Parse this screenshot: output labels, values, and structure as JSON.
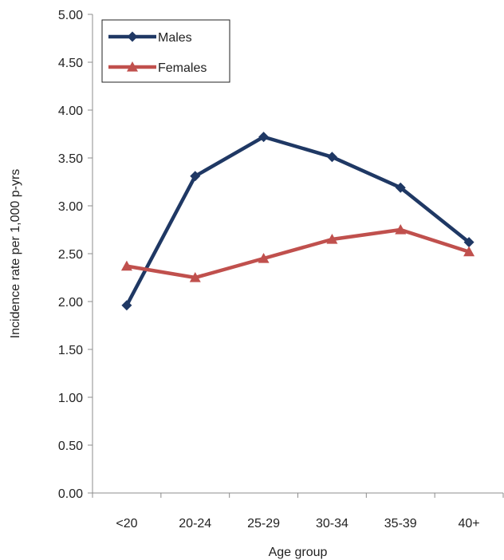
{
  "chart_data": {
    "type": "line",
    "title": "",
    "xlabel": "Age group",
    "ylabel": "Incidence rate per 1,000 p-yrs",
    "categories": [
      "<20",
      "20-24",
      "25-29",
      "30-34",
      "35-39",
      "40+"
    ],
    "ylim": [
      0,
      5
    ],
    "yticks": [
      "0.00",
      "0.50",
      "1.00",
      "1.50",
      "2.00",
      "2.50",
      "3.00",
      "3.50",
      "4.00",
      "4.50",
      "5.00"
    ],
    "grid": false,
    "legend_position": "top-left",
    "series": [
      {
        "name": "Males",
        "values": [
          1.96,
          3.31,
          3.72,
          3.51,
          3.19,
          2.62
        ],
        "color": "#1f3864",
        "marker": "diamond"
      },
      {
        "name": "Females",
        "values": [
          2.37,
          2.25,
          2.45,
          2.65,
          2.75,
          2.52
        ],
        "color": "#c0504d",
        "marker": "triangle"
      }
    ]
  }
}
